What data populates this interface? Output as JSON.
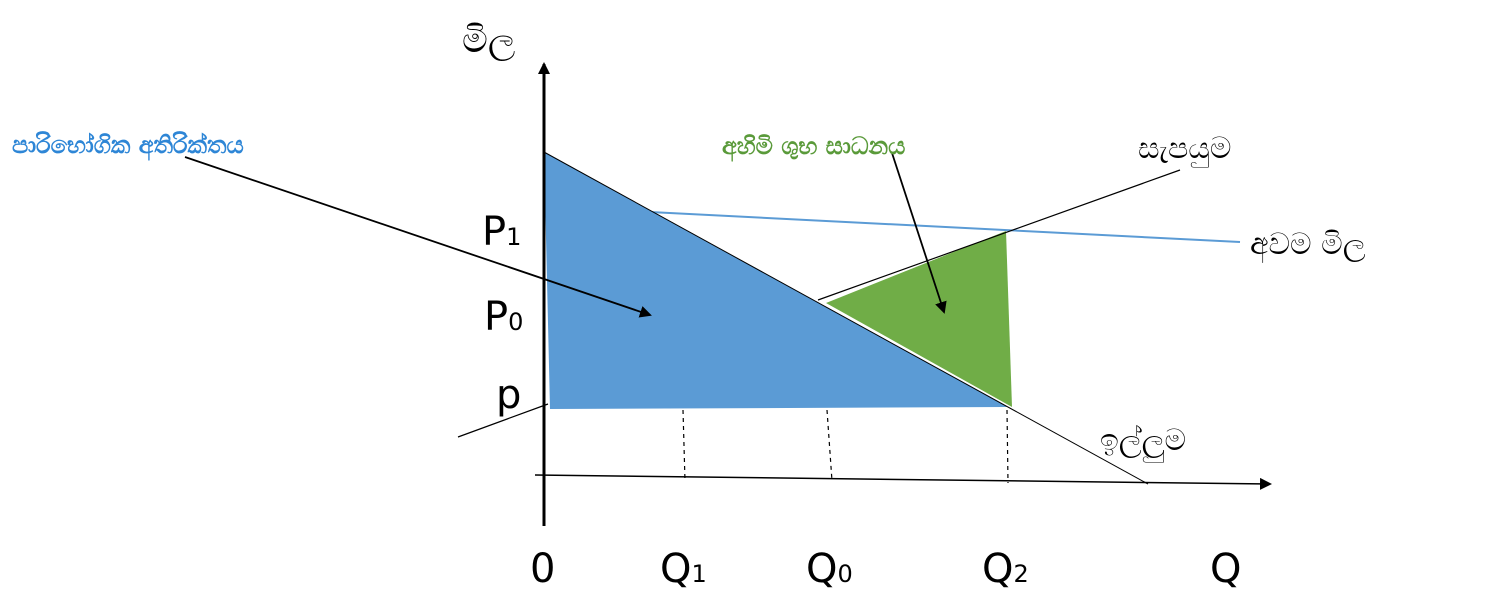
{
  "axes": {
    "y_label": "මිල",
    "x_label": "Q",
    "origin": "0"
  },
  "price_labels": {
    "p1_main": "P",
    "p1_sub": "1",
    "p0_main": "P",
    "p0_sub": "0",
    "p_low": "p"
  },
  "quantity_labels": {
    "q1_main": "Q",
    "q1_sub": "1",
    "q0_main": "Q",
    "q0_sub": "0",
    "q2_main": "Q",
    "q2_sub": "2"
  },
  "curves": {
    "supply": "සැපයුම",
    "demand": "ඉල්ලුම",
    "min_price": "අවම මිල"
  },
  "areas": {
    "consumer_surplus": "පාරිභෝගික අතිරික්තය",
    "producer_surplus": "අහිමි ශුභ සාධනය"
  },
  "colors": {
    "consumer_surplus_fill": "#5b9bd5",
    "producer_surplus_fill": "#70ad47",
    "min_price_line": "#5b9bd5",
    "consumer_surplus_text": "#2e86d6",
    "producer_surplus_text": "#5a9a3a",
    "line": "#000000"
  }
}
